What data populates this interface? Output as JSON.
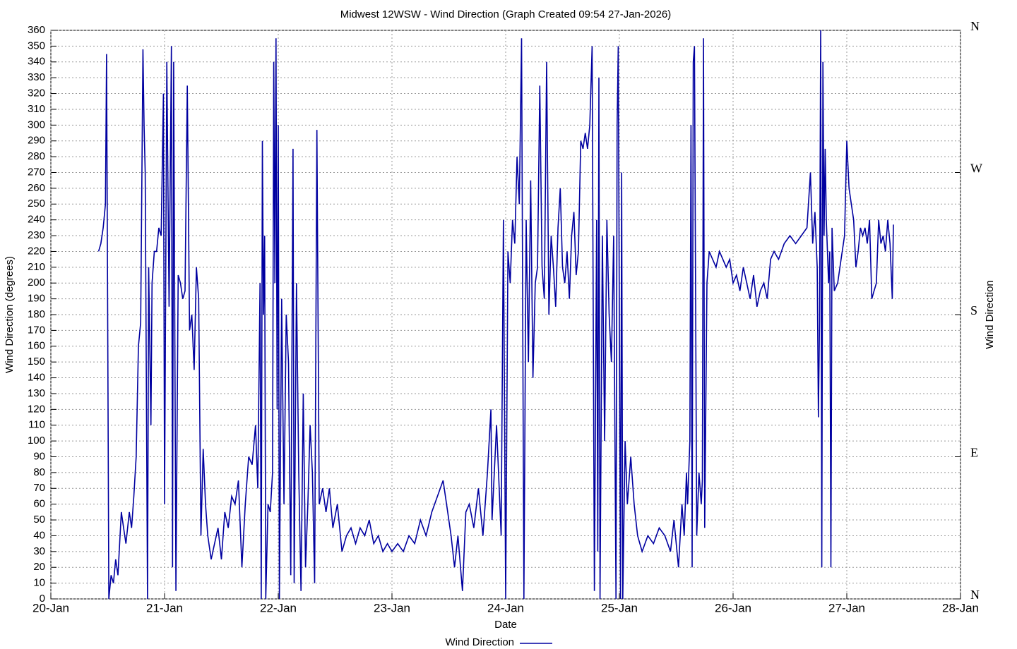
{
  "chart_data": {
    "type": "line",
    "title": "Midwest 12WSW - Wind Direction (Graph Created 09:54 27-Jan-2026)",
    "x_label": "Date",
    "y_label": "Wind Direction (degrees)",
    "y2_label": "Wind Direction",
    "grid": true,
    "legend": "bottom",
    "xlim": [
      20,
      28
    ],
    "xticks": [
      {
        "value": 20,
        "label": "20-Jan"
      },
      {
        "value": 21,
        "label": "21-Jan"
      },
      {
        "value": 22,
        "label": "22-Jan"
      },
      {
        "value": 23,
        "label": "23-Jan"
      },
      {
        "value": 24,
        "label": "24-Jan"
      },
      {
        "value": 25,
        "label": "25-Jan"
      },
      {
        "value": 26,
        "label": "26-Jan"
      },
      {
        "value": 27,
        "label": "27-Jan"
      },
      {
        "value": 28,
        "label": "28-Jan"
      }
    ],
    "ylim": [
      0,
      360
    ],
    "yticks": [
      0,
      10,
      20,
      30,
      40,
      50,
      60,
      70,
      80,
      90,
      100,
      110,
      120,
      130,
      140,
      150,
      160,
      170,
      180,
      190,
      200,
      210,
      220,
      230,
      240,
      250,
      260,
      270,
      280,
      290,
      300,
      310,
      320,
      330,
      340,
      350,
      360
    ],
    "y2lim": [
      0,
      360
    ],
    "y2ticks": [
      {
        "value": 0,
        "label": "N"
      },
      {
        "value": 90,
        "label": "E"
      },
      {
        "value": 180,
        "label": "S"
      },
      {
        "value": 270,
        "label": "W"
      },
      {
        "value": 360,
        "label": "N"
      }
    ],
    "x": [
      20.42,
      20.44,
      20.46,
      20.48,
      20.49,
      20.5,
      20.51,
      20.53,
      20.55,
      20.57,
      20.59,
      20.62,
      20.64,
      20.66,
      20.69,
      20.71,
      20.73,
      20.75,
      20.77,
      20.79,
      20.81,
      20.82,
      20.83,
      20.85,
      20.86,
      20.88,
      20.89,
      20.91,
      20.93,
      20.95,
      20.97,
      20.99,
      21.0,
      21.02,
      21.04,
      21.06,
      21.07,
      21.08,
      21.1,
      21.12,
      21.14,
      21.16,
      21.18,
      21.2,
      21.22,
      21.24,
      21.26,
      21.28,
      21.3,
      21.32,
      21.34,
      21.36,
      21.38,
      21.41,
      21.44,
      21.47,
      21.5,
      21.53,
      21.56,
      21.59,
      21.62,
      21.65,
      21.68,
      21.71,
      21.74,
      21.77,
      21.8,
      21.82,
      21.84,
      21.85,
      21.86,
      21.87,
      21.88,
      21.89,
      21.91,
      21.93,
      21.95,
      21.96,
      21.97,
      21.98,
      21.99,
      22.0,
      22.01,
      22.03,
      22.05,
      22.07,
      22.09,
      22.11,
      22.13,
      22.14,
      22.16,
      22.18,
      22.2,
      22.22,
      22.24,
      22.26,
      22.28,
      22.3,
      22.32,
      22.34,
      22.36,
      22.39,
      22.42,
      22.45,
      22.48,
      22.52,
      22.56,
      22.6,
      22.64,
      22.68,
      22.72,
      22.76,
      22.8,
      22.84,
      22.88,
      22.92,
      22.96,
      23.0,
      23.05,
      23.1,
      23.15,
      23.2,
      23.25,
      23.3,
      23.35,
      23.4,
      23.45,
      23.48,
      23.52,
      23.55,
      23.58,
      23.62,
      23.65,
      23.68,
      23.72,
      23.76,
      23.8,
      23.84,
      23.87,
      23.88,
      23.92,
      23.96,
      23.98,
      24.0,
      24.02,
      24.04,
      24.06,
      24.08,
      24.1,
      24.12,
      24.14,
      24.16,
      24.18,
      24.2,
      24.22,
      24.24,
      24.26,
      24.28,
      24.3,
      24.32,
      24.34,
      24.36,
      24.38,
      24.4,
      24.42,
      24.44,
      24.46,
      24.48,
      24.5,
      24.52,
      24.54,
      24.56,
      24.58,
      24.6,
      24.62,
      24.64,
      24.66,
      24.68,
      24.7,
      24.72,
      24.74,
      24.76,
      24.78,
      24.8,
      24.81,
      24.82,
      24.83,
      24.85,
      24.87,
      24.89,
      24.91,
      24.93,
      24.95,
      24.97,
      24.98,
      24.99,
      25.01,
      25.02,
      25.03,
      25.05,
      25.07,
      25.1,
      25.13,
      25.16,
      25.2,
      25.25,
      25.3,
      25.35,
      25.4,
      25.45,
      25.48,
      25.52,
      25.55,
      25.57,
      25.59,
      25.6,
      25.62,
      25.63,
      25.64,
      25.65,
      25.66,
      25.68,
      25.7,
      25.72,
      25.73,
      25.74,
      25.75,
      25.77,
      25.79,
      25.82,
      25.85,
      25.88,
      25.91,
      25.94,
      25.97,
      26.0,
      26.03,
      26.06,
      26.09,
      26.12,
      26.15,
      26.18,
      26.21,
      26.24,
      26.27,
      26.3,
      26.33,
      26.36,
      26.4,
      26.45,
      26.5,
      26.55,
      26.6,
      26.65,
      26.68,
      26.7,
      26.72,
      26.74,
      26.75,
      26.76,
      26.77,
      26.78,
      26.79,
      26.8,
      26.81,
      26.82,
      26.84,
      26.85,
      26.86,
      26.87,
      26.89,
      26.92,
      26.95,
      26.98,
      27.0,
      27.02,
      27.04,
      27.06,
      27.08,
      27.1,
      27.12,
      27.14,
      27.16,
      27.18,
      27.2,
      27.22,
      27.24,
      27.26,
      27.28,
      27.3,
      27.32,
      27.34,
      27.36,
      27.38,
      27.4,
      27.41
    ],
    "series": [
      {
        "name": "Wind Direction",
        "color": "#0000a0",
        "values": [
          220,
          225,
          235,
          250,
          345,
          175,
          0,
          15,
          10,
          25,
          15,
          55,
          45,
          35,
          55,
          45,
          65,
          90,
          160,
          175,
          348,
          300,
          270,
          0,
          210,
          110,
          200,
          220,
          220,
          235,
          230,
          320,
          60,
          340,
          185,
          350,
          20,
          340,
          5,
          205,
          200,
          190,
          195,
          325,
          170,
          180,
          145,
          210,
          190,
          40,
          95,
          60,
          40,
          25,
          35,
          45,
          25,
          55,
          45,
          65,
          60,
          75,
          20,
          60,
          90,
          85,
          110,
          70,
          200,
          0,
          290,
          180,
          230,
          0,
          60,
          55,
          80,
          340,
          200,
          355,
          120,
          300,
          0,
          190,
          60,
          180,
          150,
          15,
          285,
          10,
          200,
          80,
          5,
          130,
          20,
          60,
          110,
          80,
          10,
          297,
          60,
          70,
          55,
          70,
          45,
          60,
          30,
          40,
          45,
          35,
          45,
          40,
          50,
          35,
          40,
          30,
          35,
          30,
          35,
          30,
          40,
          35,
          50,
          40,
          55,
          65,
          75,
          60,
          40,
          20,
          40,
          5,
          55,
          60,
          45,
          70,
          40,
          80,
          120,
          50,
          110,
          40,
          240,
          0,
          220,
          200,
          240,
          225,
          280,
          250,
          355,
          0,
          240,
          150,
          265,
          140,
          200,
          210,
          325,
          210,
          190,
          340,
          180,
          230,
          210,
          185,
          235,
          260,
          210,
          200,
          220,
          190,
          230,
          245,
          205,
          220,
          290,
          285,
          295,
          285,
          300,
          350,
          5,
          240,
          30,
          330,
          0,
          230,
          100,
          240,
          180,
          150,
          230,
          0,
          300,
          350,
          0,
          270,
          0,
          100,
          60,
          90,
          60,
          40,
          30,
          40,
          35,
          45,
          40,
          30,
          50,
          20,
          60,
          40,
          80,
          60,
          100,
          300,
          20,
          340,
          350,
          40,
          80,
          60,
          75,
          355,
          45,
          200,
          220,
          215,
          210,
          220,
          215,
          210,
          215,
          200,
          205,
          195,
          210,
          200,
          190,
          205,
          185,
          195,
          200,
          190,
          215,
          220,
          215,
          225,
          230,
          225,
          230,
          235,
          270,
          225,
          245,
          210,
          115,
          175,
          360,
          20,
          340,
          230,
          285,
          240,
          200,
          220,
          20,
          235,
          195,
          200,
          215,
          230,
          290,
          260,
          250,
          240,
          210,
          220,
          235,
          230,
          235,
          225,
          240,
          190,
          195,
          200,
          240,
          225,
          230,
          220,
          240,
          225,
          190,
          237
        ]
      }
    ]
  }
}
